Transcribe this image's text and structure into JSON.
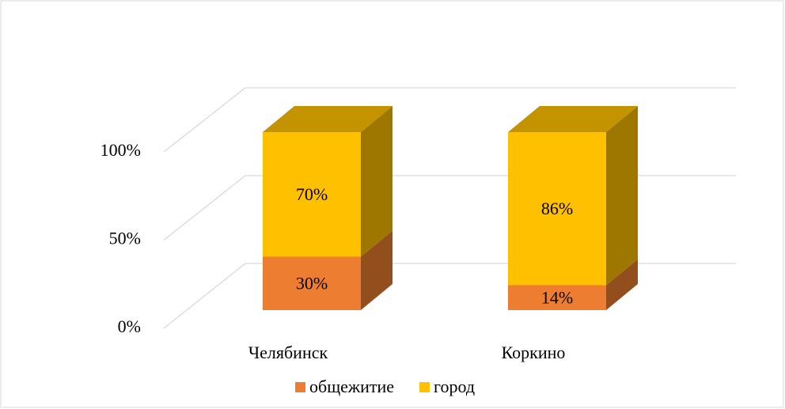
{
  "chart_data": {
    "type": "bar3d_stacked",
    "categories": [
      "Челябинск",
      "Коркино"
    ],
    "series": [
      {
        "name": "общежитие",
        "color": "#ED7D31",
        "values": [
          30,
          14
        ],
        "value_labels": [
          "30%",
          "14%"
        ]
      },
      {
        "name": "город",
        "color": "#FFC000",
        "values": [
          70,
          86
        ],
        "value_labels": [
          "70%",
          "86%"
        ]
      }
    ],
    "ylim": [
      0,
      100
    ],
    "yticks": [
      {
        "value": 0,
        "label": "0%"
      },
      {
        "value": 50,
        "label": "50%"
      },
      {
        "value": 100,
        "label": "100%"
      }
    ],
    "grid": true,
    "legend": "bottom"
  }
}
